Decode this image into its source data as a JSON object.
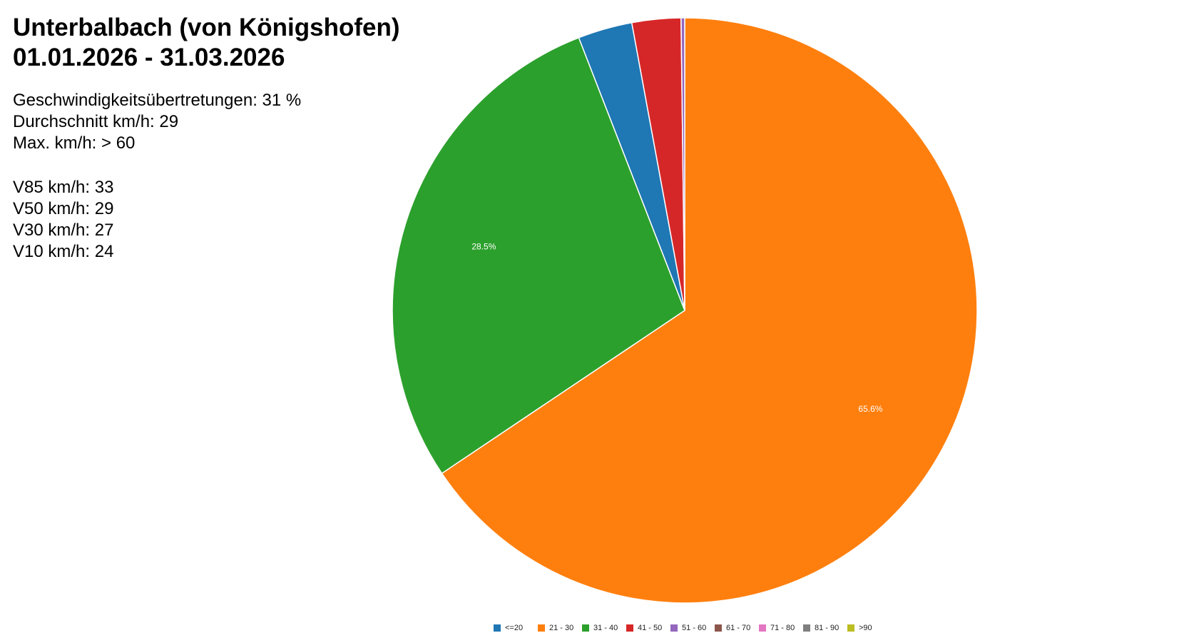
{
  "title": {
    "line1": "Unterbalbach (von Königshofen)",
    "line2": "01.01.2026 - 31.03.2026"
  },
  "stats": {
    "overspeed": "Geschwindigkeitsübertretungen: 31 %",
    "average": "Durchschnitt km/h: 29",
    "max": "Max. km/h: > 60",
    "v85": "V85 km/h: 33",
    "v50": "V50 km/h: 29",
    "v30": "V30 km/h: 27",
    "v10": "V10 km/h: 24"
  },
  "chart_data": {
    "type": "pie",
    "categories": [
      "<=20",
      "21 - 30",
      "31 - 40",
      "41 - 50",
      "51 - 60",
      "61 - 70",
      "71 - 80",
      "81 - 90",
      ">90"
    ],
    "values": [
      3.0,
      65.6,
      28.5,
      2.7,
      0.2,
      0,
      0,
      0,
      0
    ],
    "data_labels": [
      "",
      "65.6%",
      "28.5%",
      "",
      "",
      "",
      "",
      "",
      ""
    ],
    "colors": [
      "#1f77b4",
      "#ff7f0e",
      "#2ca02c",
      "#d62728",
      "#9467bd",
      "#8c564b",
      "#e377c2",
      "#7f7f7f",
      "#bcbd22"
    ],
    "start": "12 o'clock, clockwise from the 21 - 30 slice",
    "legend_position": "bottom-center"
  }
}
